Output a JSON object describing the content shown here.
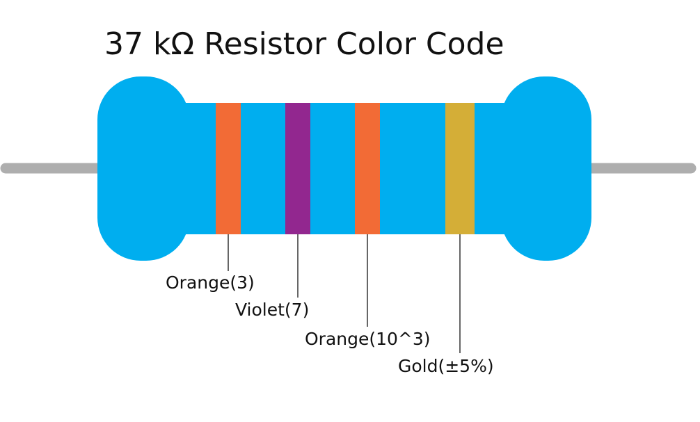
{
  "title": "37 kΩ Resistor Color Code",
  "colors": {
    "body": "#00aeef",
    "lead": "#aeaeae",
    "leader_line": "#333333"
  },
  "bands": [
    {
      "name": "Orange",
      "color": "#f26b36",
      "label": "Orange(3)"
    },
    {
      "name": "Violet",
      "color": "#92278f",
      "label": "Violet(7)"
    },
    {
      "name": "Orange",
      "color": "#f26b36",
      "label": "Orange(10^3)"
    },
    {
      "name": "Gold",
      "color": "#d4ae37",
      "label": "Gold(±5%)"
    }
  ]
}
